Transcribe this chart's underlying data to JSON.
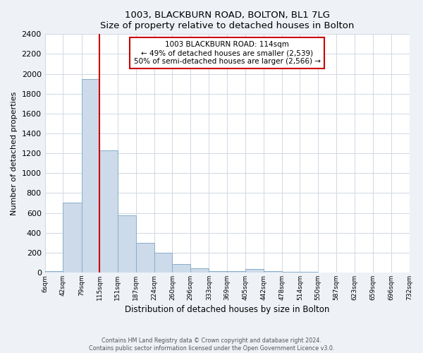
{
  "title": "1003, BLACKBURN ROAD, BOLTON, BL1 7LG",
  "subtitle": "Size of property relative to detached houses in Bolton",
  "xlabel": "Distribution of detached houses by size in Bolton",
  "ylabel": "Number of detached properties",
  "bin_edges": [
    6,
    42,
    79,
    115,
    151,
    187,
    224,
    260,
    296,
    333,
    369,
    405,
    442,
    478,
    514,
    550,
    587,
    623,
    659,
    696,
    732
  ],
  "bin_labels": [
    "6sqm",
    "42sqm",
    "79sqm",
    "115sqm",
    "151sqm",
    "187sqm",
    "224sqm",
    "260sqm",
    "296sqm",
    "333sqm",
    "369sqm",
    "405sqm",
    "442sqm",
    "478sqm",
    "514sqm",
    "550sqm",
    "587sqm",
    "623sqm",
    "659sqm",
    "696sqm",
    "732sqm"
  ],
  "bar_heights": [
    10,
    700,
    1950,
    1230,
    575,
    300,
    200,
    85,
    45,
    10,
    10,
    35,
    10,
    5,
    5,
    2,
    2,
    1,
    1,
    1
  ],
  "bar_color": "#cddaea",
  "bar_edgecolor": "#88aec8",
  "vline_x": 114,
  "vline_color": "#cc0000",
  "ylim": [
    0,
    2400
  ],
  "yticks": [
    0,
    200,
    400,
    600,
    800,
    1000,
    1200,
    1400,
    1600,
    1800,
    2000,
    2200,
    2400
  ],
  "annotation_line1": "1003 BLACKBURN ROAD: 114sqm",
  "annotation_line2": "← 49% of detached houses are smaller (2,539)",
  "annotation_line3": "50% of semi-detached houses are larger (2,566) →",
  "annotation_box_color": "#ffffff",
  "annotation_box_edgecolor": "#cc0000",
  "footer_line1": "Contains HM Land Registry data © Crown copyright and database right 2024.",
  "footer_line2": "Contains public sector information licensed under the Open Government Licence v3.0.",
  "background_color": "#eef2f7",
  "plot_background_color": "#ffffff",
  "grid_color": "#d0d8e4"
}
